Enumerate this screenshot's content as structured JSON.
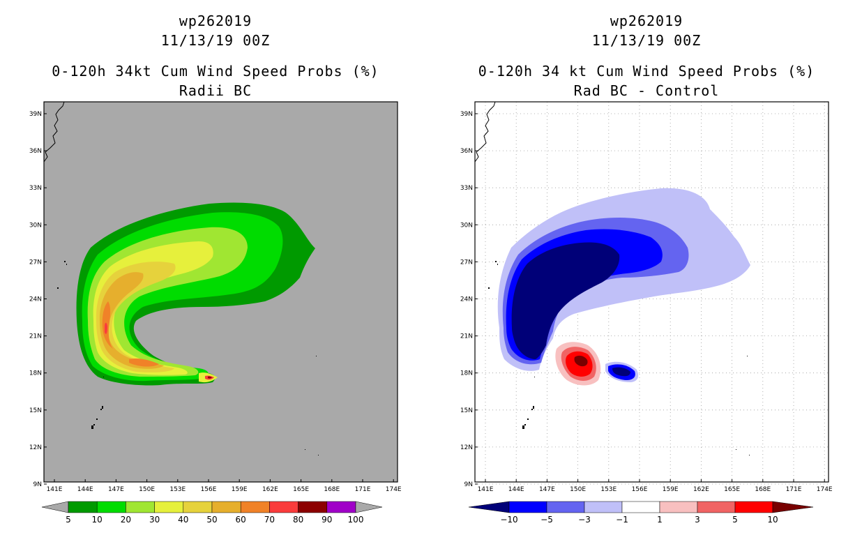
{
  "left": {
    "storm_id": "wp262019",
    "date": "11/13/19 00Z",
    "product": "0-120h 34kt Cum Wind Speed Probs (%)",
    "subtitle": "Radii BC",
    "lat_labels": [
      "39N",
      "36N",
      "33N",
      "30N",
      "27N",
      "24N",
      "21N",
      "18N",
      "15N",
      "12N",
      "9N"
    ],
    "lon_labels": [
      "141E",
      "144E",
      "147E",
      "150E",
      "153E",
      "156E",
      "159E",
      "162E",
      "165E",
      "168E",
      "171E",
      "174E"
    ],
    "colorbar": {
      "colors": [
        "#009a00",
        "#00dc00",
        "#a0e632",
        "#e6f03c",
        "#e6d23c",
        "#e6af2d",
        "#f08228",
        "#fa3c3c",
        "#8c0000",
        "#a000c8"
      ],
      "labels": [
        "5",
        "10",
        "20",
        "30",
        "40",
        "50",
        "60",
        "70",
        "80",
        "90",
        "100"
      ]
    }
  },
  "right": {
    "storm_id": "wp262019",
    "date": "11/13/19 00Z",
    "product": "0-120h 34 kt Cum Wind Speed Probs (%)",
    "subtitle": "Rad BC - Control",
    "lat_labels": [
      "39N",
      "36N",
      "33N",
      "30N",
      "27N",
      "24N",
      "21N",
      "18N",
      "15N",
      "12N",
      "9N"
    ],
    "lon_labels": [
      "141E",
      "144E",
      "147E",
      "150E",
      "153E",
      "156E",
      "159E",
      "162E",
      "165E",
      "168E",
      "171E",
      "174E"
    ],
    "colorbar": {
      "colors": [
        "#0000ff",
        "#6464f0",
        "#c0c0f8",
        "#ffffff",
        "#f8c0c0",
        "#f06464",
        "#ff0000"
      ],
      "left_end": "#000078",
      "right_end": "#780000",
      "labels": [
        "−10",
        "−5",
        "−3",
        "−1",
        "1",
        "3",
        "5",
        "10"
      ]
    }
  }
}
